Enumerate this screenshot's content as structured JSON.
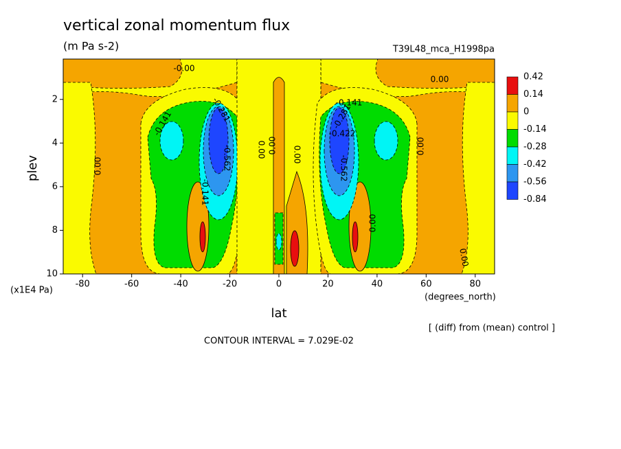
{
  "chart_data": {
    "type": "contour",
    "title": "vertical zonal momentum flux",
    "subtitle": "(m Pa s-2)",
    "run_label": "T39L48_mca_H1998pa",
    "x_label": "lat",
    "x_unit": "(degrees_north)",
    "y_label": "plev",
    "y_unit": "(x1E4 Pa)",
    "note": "[ (diff) from (mean) control ]",
    "footer": "CONTOUR INTERVAL = 7.029E-02",
    "xlim": [
      -87.9,
      87.9
    ],
    "xticks": [
      -80,
      -60,
      -40,
      -20,
      0,
      20,
      40,
      60,
      80
    ],
    "ylim": [
      10,
      0.15
    ],
    "yticks": [
      2,
      4,
      6,
      8,
      10
    ],
    "colorbar": {
      "levels": [
        0.42,
        0.14,
        0,
        -0.14,
        -0.28,
        -0.42,
        -0.56,
        -0.84
      ],
      "colors": [
        "#e80f0f",
        "#f5a500",
        "#fafa00",
        "#00dc00",
        "#00f5f5",
        "#2d96f0",
        "#1e46ff"
      ]
    },
    "contour_labels": [
      {
        "value": 0,
        "label": "-0.00"
      },
      {
        "value": 0,
        "label": "0.00"
      },
      {
        "value": 0,
        "label": "0.00"
      },
      {
        "value": 0,
        "label": "0.00"
      },
      {
        "value": 0,
        "label": "0.00"
      },
      {
        "value": 0,
        "label": "0.00"
      },
      {
        "value": 0,
        "label": "0.00"
      },
      {
        "value": 0,
        "label": "0.00"
      },
      {
        "value": 0,
        "label": "0.00"
      },
      -0.141,
      -0.141,
      -0.141,
      -0.281,
      -0.281,
      -0.562,
      -0.562,
      -0.422
    ]
  }
}
